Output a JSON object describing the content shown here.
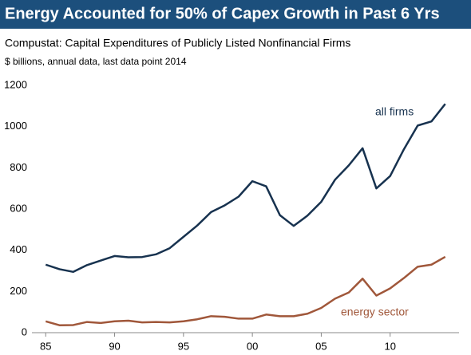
{
  "chart_data": {
    "type": "line",
    "title": "Energy Accounted for 50% of Capex Growth in Past 6 Yrs",
    "subtitle": "Compustat: Capital Expenditures of Publicly Listed Nonfinancial Firms",
    "note": "$ billions, annual data, last data point 2014",
    "x": [
      1985,
      1986,
      1987,
      1988,
      1989,
      1990,
      1991,
      1992,
      1993,
      1994,
      1995,
      1996,
      1997,
      1998,
      1999,
      2000,
      2001,
      2002,
      2003,
      2004,
      2005,
      2006,
      2007,
      2008,
      2009,
      2010,
      2011,
      2012,
      2013,
      2014
    ],
    "series": [
      {
        "name": "all firms",
        "color": "#17324f",
        "values": [
          330,
          308,
          295,
          328,
          350,
          372,
          366,
          367,
          380,
          410,
          465,
          520,
          585,
          618,
          660,
          735,
          710,
          570,
          518,
          568,
          635,
          742,
          812,
          895,
          700,
          760,
          890,
          1005,
          1025,
          1110
        ]
      },
      {
        "name": "energy sector",
        "color": "#a0573a",
        "values": [
          55,
          36,
          37,
          52,
          47,
          55,
          58,
          50,
          52,
          50,
          55,
          65,
          80,
          77,
          68,
          68,
          88,
          80,
          80,
          92,
          120,
          165,
          195,
          262,
          180,
          215,
          265,
          320,
          330,
          368
        ]
      }
    ],
    "xlim": [
      1984,
      2015
    ],
    "xticks": [
      {
        "value": 1985,
        "label": "85"
      },
      {
        "value": 1990,
        "label": "90"
      },
      {
        "value": 1995,
        "label": "95"
      },
      {
        "value": 2000,
        "label": "00"
      },
      {
        "value": 2005,
        "label": "05"
      },
      {
        "value": 2010,
        "label": "10"
      }
    ],
    "ylim": [
      0,
      1200
    ],
    "yticks": [
      0,
      200,
      400,
      600,
      800,
      1000,
      1200
    ],
    "grid": false
  }
}
